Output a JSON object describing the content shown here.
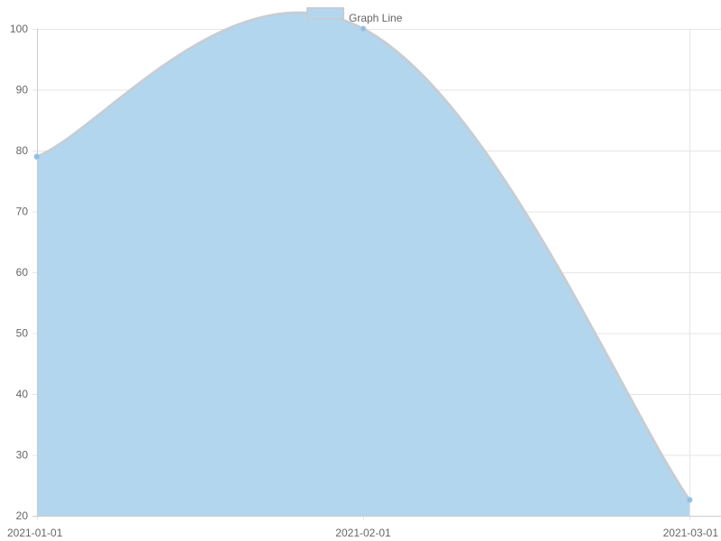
{
  "chart_data": {
    "type": "area",
    "x": [
      "2021-01-01",
      "2021-02-01",
      "2021-03-01"
    ],
    "series": [
      {
        "name": "Graph Line",
        "values": [
          79,
          100,
          22.6
        ]
      }
    ],
    "y_ticks": [
      20,
      30,
      40,
      50,
      60,
      70,
      80,
      90,
      100
    ],
    "ylim": [
      20,
      100
    ],
    "grid": true,
    "legend": "top-center",
    "colors": {
      "fill": "#b3d6ef",
      "line": "#c6cdd3",
      "point": "#8ebfe3",
      "grid": "#e5e5e5",
      "axis": "#cccccc",
      "text": "#666666"
    }
  }
}
